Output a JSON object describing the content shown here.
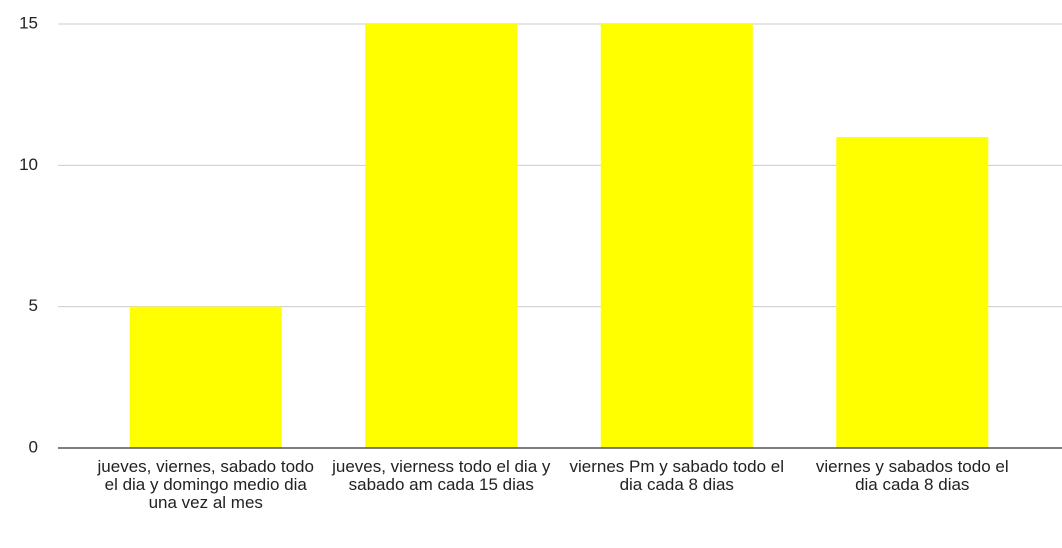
{
  "chart_data": {
    "type": "bar",
    "categories": [
      "jueves, viernes, sabado todo el dia y domingo medio dia una vez al mes",
      "jueves, vierness todo el dia y sabado am cada 15 dias",
      "viernes Pm y sabado todo el dia cada 8 dias",
      "viernes y sabados todo el dia cada 8 dias"
    ],
    "values": [
      5,
      15,
      15,
      11
    ],
    "color": "#ffff00",
    "ylim": [
      0,
      15
    ],
    "yticks": [
      0,
      5,
      10,
      15
    ],
    "grid": true
  }
}
